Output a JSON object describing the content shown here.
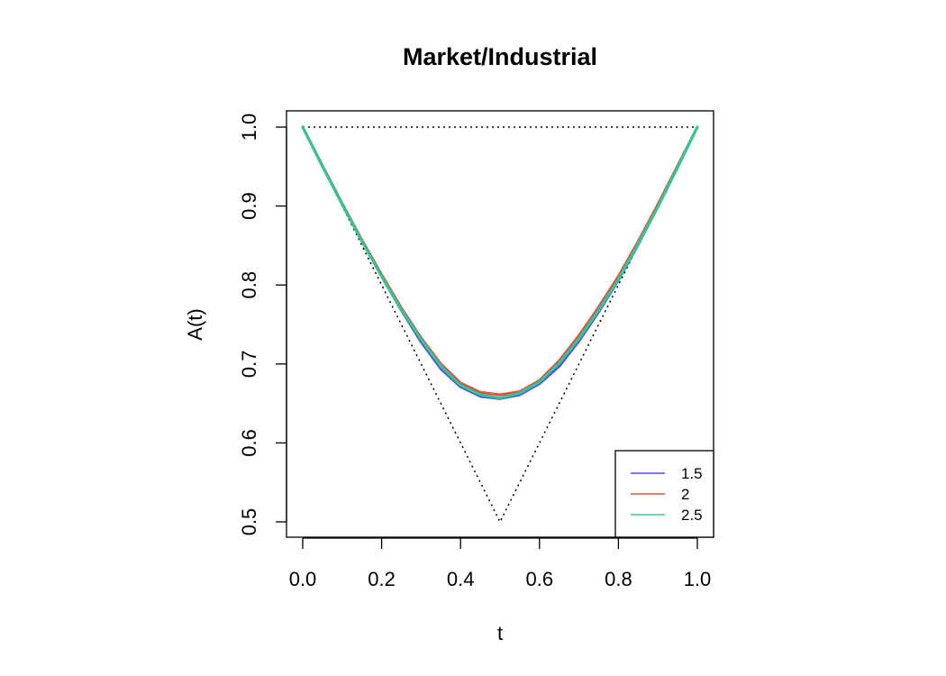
{
  "chart_data": {
    "type": "line",
    "title": "Market/Industrial",
    "xlabel": "t",
    "ylabel": "A(t)",
    "xlim": [
      0,
      1
    ],
    "ylim": [
      0.5,
      1.0
    ],
    "xticks": [
      "0.0",
      "0.2",
      "0.4",
      "0.6",
      "0.8",
      "1.0"
    ],
    "yticks": [
      "0.5",
      "0.6",
      "0.7",
      "0.8",
      "0.9",
      "1.0"
    ],
    "grid": false,
    "legend_position": "bottom-right",
    "reference_lines": [
      {
        "x": [
          0,
          1
        ],
        "y": [
          1,
          1
        ],
        "style": "dotted"
      },
      {
        "x": [
          0,
          0.5,
          1
        ],
        "y": [
          1,
          0.5,
          1
        ],
        "style": "dotted"
      }
    ],
    "x": [
      0,
      0.05,
      0.1,
      0.15,
      0.2,
      0.25,
      0.3,
      0.35,
      0.4,
      0.45,
      0.5,
      0.55,
      0.6,
      0.65,
      0.7,
      0.75,
      0.8,
      0.85,
      0.9,
      0.95,
      1.0
    ],
    "series": [
      {
        "name": "1.5",
        "color": "#4f4fe6",
        "values": [
          1.0,
          0.951,
          0.903,
          0.856,
          0.811,
          0.768,
          0.728,
          0.694,
          0.671,
          0.659,
          0.656,
          0.661,
          0.675,
          0.697,
          0.729,
          0.766,
          0.806,
          0.851,
          0.899,
          0.949,
          1.0
        ]
      },
      {
        "name": "2",
        "color": "#e0533b",
        "values": [
          1.0,
          0.951,
          0.903,
          0.857,
          0.813,
          0.771,
          0.733,
          0.7,
          0.676,
          0.664,
          0.661,
          0.665,
          0.679,
          0.704,
          0.736,
          0.772,
          0.811,
          0.855,
          0.902,
          0.951,
          1.0
        ]
      },
      {
        "name": "2.5",
        "color": "#2ec995",
        "values": [
          1.0,
          0.95,
          0.902,
          0.855,
          0.811,
          0.769,
          0.731,
          0.697,
          0.673,
          0.661,
          0.657,
          0.663,
          0.677,
          0.701,
          0.732,
          0.768,
          0.807,
          0.852,
          0.899,
          0.949,
          1.0
        ]
      }
    ]
  }
}
